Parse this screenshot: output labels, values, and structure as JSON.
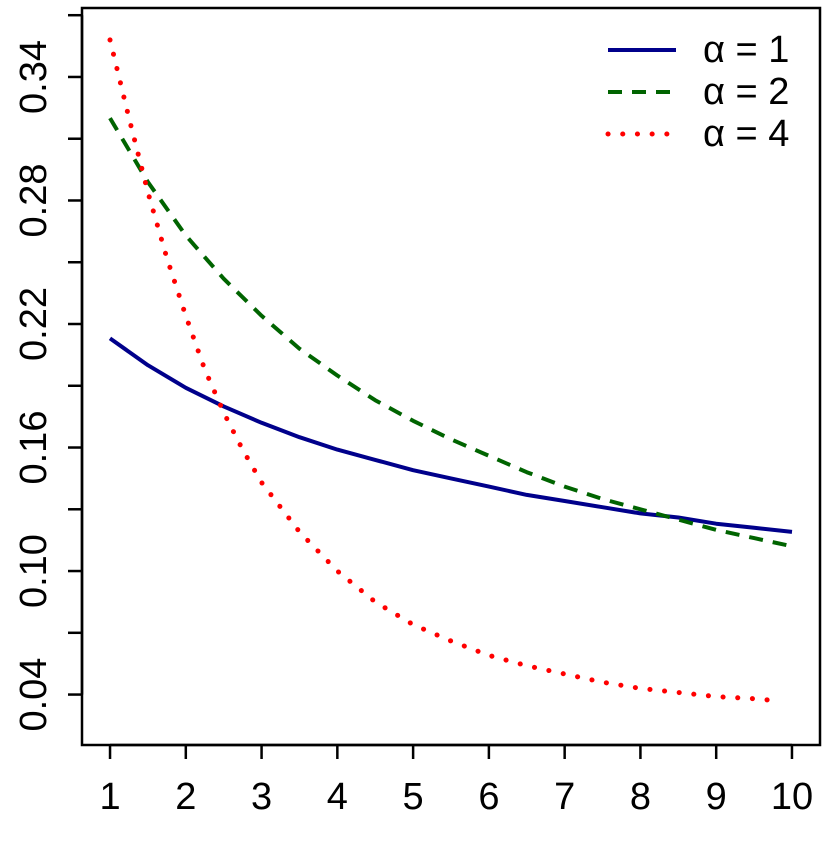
{
  "chart_data": {
    "type": "line",
    "title": "",
    "xlabel": "",
    "ylabel": "",
    "xlim": [
      0.63,
      10.37
    ],
    "ylim": [
      0.0155,
      0.3735
    ],
    "x_ticks": [
      1,
      2,
      3,
      4,
      5,
      6,
      7,
      8,
      9,
      10
    ],
    "x_tick_labels": [
      "1",
      "2",
      "3",
      "4",
      "5",
      "6",
      "7",
      "8",
      "9",
      "10"
    ],
    "y_ticks": [
      0.04,
      0.07,
      0.1,
      0.13,
      0.16,
      0.19,
      0.22,
      0.25,
      0.28,
      0.31,
      0.34,
      0.37
    ],
    "y_tick_labels": [
      "0.04",
      "",
      "0.10",
      "",
      "0.16",
      "",
      "0.22",
      "",
      "0.28",
      "",
      "0.34",
      ""
    ],
    "grid": false,
    "legend_position": "top-right",
    "series": [
      {
        "name": "α = 1",
        "color": "#00008B",
        "line_style": "solid",
        "x": [
          1,
          1.5,
          2,
          2.5,
          3,
          3.5,
          4,
          4.5,
          5,
          5.5,
          6,
          6.5,
          7,
          7.5,
          8,
          8.5,
          9,
          9.5,
          10
        ],
        "y": [
          0.213,
          0.2,
          0.189,
          0.18,
          0.172,
          0.165,
          0.159,
          0.154,
          0.149,
          0.145,
          0.141,
          0.137,
          0.134,
          0.131,
          0.128,
          0.126,
          0.123,
          0.121,
          0.119
        ]
      },
      {
        "name": "α = 2",
        "color": "#006400",
        "line_style": "dashed",
        "x": [
          1,
          1.5,
          2,
          2.5,
          3,
          3.5,
          4,
          4.5,
          5,
          5.5,
          6,
          6.5,
          7,
          7.5,
          8,
          8.5,
          9,
          9.5,
          10
        ],
        "y": [
          0.32,
          0.289,
          0.263,
          0.242,
          0.224,
          0.208,
          0.195,
          0.183,
          0.173,
          0.164,
          0.156,
          0.148,
          0.141,
          0.135,
          0.13,
          0.125,
          0.12,
          0.116,
          0.112
        ]
      },
      {
        "name": "α = 4",
        "color": "#FF0000",
        "line_style": "dotted",
        "x": [
          1,
          1.25,
          1.5,
          1.75,
          2,
          2.25,
          2.5,
          2.75,
          3,
          3.5,
          4,
          4.5,
          5,
          5.5,
          6,
          6.5,
          7,
          7.5,
          8,
          8.5,
          9,
          9.5,
          9.8
        ],
        "y": [
          0.358,
          0.32,
          0.284,
          0.252,
          0.224,
          0.198,
          0.177,
          0.159,
          0.143,
          0.119,
          0.1,
          0.085,
          0.074,
          0.066,
          0.059,
          0.054,
          0.05,
          0.046,
          0.043,
          0.041,
          0.039,
          0.038,
          0.037
        ]
      }
    ]
  }
}
